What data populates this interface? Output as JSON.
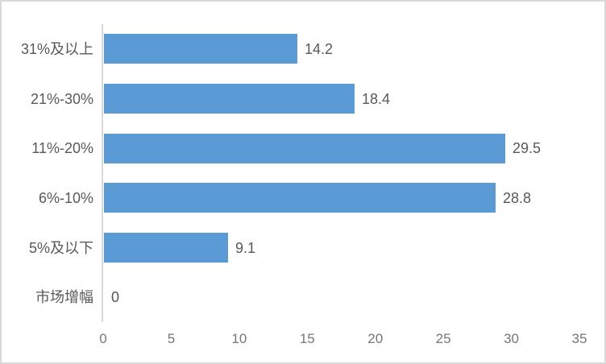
{
  "chart_data": {
    "type": "bar",
    "orientation": "horizontal",
    "title": "",
    "xlabel": "",
    "ylabel": "",
    "categories": [
      "31%及以上",
      "21%-30%",
      "11%-20%",
      "6%-10%",
      "5%及以下",
      "市场增幅"
    ],
    "values": [
      14.2,
      18.4,
      29.5,
      28.8,
      9.1,
      0
    ],
    "data_labels": [
      "14.2",
      "18.4",
      "29.5",
      "28.8",
      "9.1",
      "0"
    ],
    "x_ticks": [
      "0",
      "5",
      "10",
      "15",
      "20",
      "25",
      "30",
      "35"
    ],
    "xlim": [
      0,
      35
    ],
    "grid": false,
    "legend_position": "none",
    "bar_color": "#5b9bd5",
    "axis_line_color": "#d9d9d9",
    "category_label_color": "#595959",
    "data_label_color": "#595959",
    "tick_label_color": "#767676",
    "border_color": "#d9d9d9",
    "background_color": "#ffffff"
  }
}
